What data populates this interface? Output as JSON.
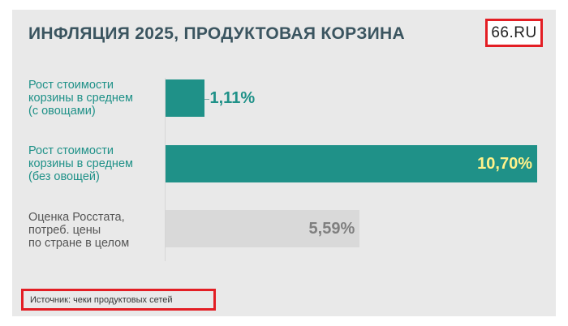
{
  "header": {
    "title": "ИНФЛЯЦИЯ 2025, ПРОДУКТОВАЯ КОРЗИНА",
    "logo": "66.RU"
  },
  "footer": {
    "source": "Источник: чеки продуктовых сетей"
  },
  "colors": {
    "accent": "#1f9188",
    "label_teal": "#1f9188",
    "label_gray": "#555555",
    "highlight": "#fff28a",
    "gray_bar": "#d9d9d9",
    "gray_value": "#7f7f7f",
    "title": "#3b5560",
    "frame_red": "#e31e24"
  },
  "chart_data": {
    "type": "bar",
    "orientation": "horizontal",
    "title": "ИНФЛЯЦИЯ 2025, ПРОДУКТОВАЯ КОРЗИНА",
    "xlim": [
      0,
      10.7
    ],
    "grid": false,
    "categories": [
      [
        "Рост стоимости",
        "корзины в среднем",
        "(с овощами)"
      ],
      [
        "Рост стоимости",
        "корзины в среднем",
        "(без овощей)"
      ],
      [
        "Оценка Росстата,",
        "потреб. цены",
        "по стране в целом"
      ]
    ],
    "values": [
      1.11,
      10.7,
      5.59
    ],
    "value_labels": [
      "1,11%",
      "10,70%",
      "5,59%"
    ],
    "bar_colors": [
      "#1f9188",
      "#1f9188",
      "#d9d9d9"
    ]
  }
}
